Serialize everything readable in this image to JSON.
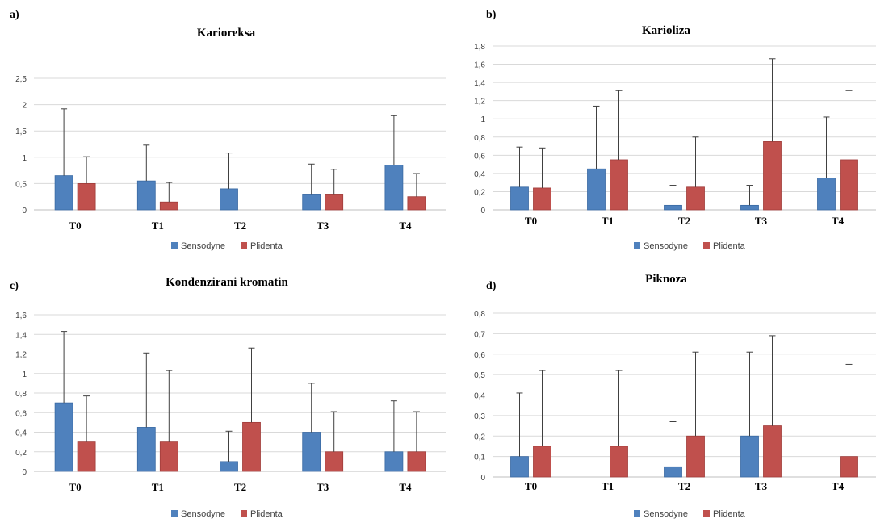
{
  "chart_data": [
    {
      "type": "bar",
      "panel_label": "a)",
      "title": "Karioreksa",
      "categories": [
        "T0",
        "T1",
        "T2",
        "T3",
        "T4"
      ],
      "ylim": [
        0,
        2.5
      ],
      "yticks": [
        "0",
        "0,5",
        "1",
        "1,5",
        "2",
        "2,5"
      ],
      "ytick_values": [
        0,
        0.5,
        1,
        1.5,
        2,
        2.5
      ],
      "grid": true,
      "legend_position": "bottom",
      "series": [
        {
          "name": "Sensodyne",
          "color": "#4f81bd",
          "values": [
            0.65,
            0.55,
            0.4,
            0.3,
            0.85
          ],
          "errors": [
            1.27,
            0.68,
            0.68,
            0.57,
            0.94
          ]
        },
        {
          "name": "Plidenta",
          "color": "#c0504d",
          "values": [
            0.5,
            0.15,
            0,
            0.3,
            0.25
          ],
          "errors": [
            0.51,
            0.37,
            0,
            0.47,
            0.44
          ]
        }
      ]
    },
    {
      "type": "bar",
      "panel_label": "b)",
      "title": "Karioliza",
      "categories": [
        "T0",
        "T1",
        "T2",
        "T3",
        "T4"
      ],
      "ylim": [
        0,
        1.8
      ],
      "yticks": [
        "0",
        "0,2",
        "0,4",
        "0,6",
        "0,8",
        "1",
        "1,2",
        "1,4",
        "1,6",
        "1,8"
      ],
      "ytick_values": [
        0,
        0.2,
        0.4,
        0.6,
        0.8,
        1.0,
        1.2,
        1.4,
        1.6,
        1.8
      ],
      "grid": true,
      "legend_position": "bottom",
      "series": [
        {
          "name": "Sensodyne",
          "color": "#4f81bd",
          "values": [
            0.25,
            0.45,
            0.05,
            0.05,
            0.35
          ],
          "errors": [
            0.44,
            0.69,
            0.22,
            0.22,
            0.67
          ]
        },
        {
          "name": "Plidenta",
          "color": "#c0504d",
          "values": [
            0.24,
            0.55,
            0.25,
            0.75,
            0.55
          ],
          "errors": [
            0.44,
            0.76,
            0.55,
            0.91,
            0.76
          ]
        }
      ]
    },
    {
      "type": "bar",
      "panel_label": "c)",
      "title": "Kondenzirani kromatin",
      "categories": [
        "T0",
        "T1",
        "T2",
        "T3",
        "T4"
      ],
      "ylim": [
        0,
        1.6
      ],
      "yticks": [
        "0",
        "0,2",
        "0,4",
        "0,6",
        "0,8",
        "1",
        "1,2",
        "1,4",
        "1,6"
      ],
      "ytick_values": [
        0,
        0.2,
        0.4,
        0.6,
        0.8,
        1.0,
        1.2,
        1.4,
        1.6
      ],
      "grid": true,
      "legend_position": "bottom",
      "series": [
        {
          "name": "Sensodyne",
          "color": "#4f81bd",
          "values": [
            0.7,
            0.45,
            0.1,
            0.4,
            0.2
          ],
          "errors": [
            0.73,
            0.76,
            0.31,
            0.5,
            0.52
          ]
        },
        {
          "name": "Plidenta",
          "color": "#c0504d",
          "values": [
            0.3,
            0.3,
            0.5,
            0.2,
            0.2
          ],
          "errors": [
            0.47,
            0.73,
            0.76,
            0.41,
            0.41
          ]
        }
      ]
    },
    {
      "type": "bar",
      "panel_label": "d)",
      "title": "Piknoza",
      "categories": [
        "T0",
        "T1",
        "T2",
        "T3",
        "T4"
      ],
      "ylim": [
        0,
        0.8
      ],
      "yticks": [
        "0",
        "0,1",
        "0,2",
        "0,3",
        "0,4",
        "0,5",
        "0,6",
        "0,7",
        "0,8"
      ],
      "ytick_values": [
        0,
        0.1,
        0.2,
        0.3,
        0.4,
        0.5,
        0.6,
        0.7,
        0.8
      ],
      "grid": true,
      "legend_position": "bottom",
      "series": [
        {
          "name": "Sensodyne",
          "color": "#4f81bd",
          "values": [
            0.1,
            0,
            0.05,
            0.2,
            0
          ],
          "errors": [
            0.31,
            0,
            0.22,
            0.41,
            0
          ]
        },
        {
          "name": "Plidenta",
          "color": "#c0504d",
          "values": [
            0.15,
            0.15,
            0.2,
            0.25,
            0.1
          ],
          "errors": [
            0.37,
            0.37,
            0.41,
            0.44,
            0.45
          ]
        }
      ]
    }
  ]
}
